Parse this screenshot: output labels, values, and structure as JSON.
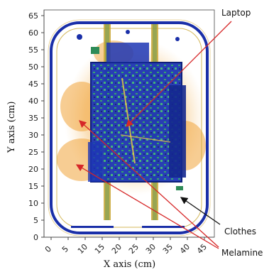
{
  "figure": {
    "x_axis_label": "X axis (cm)",
    "y_axis_label": "Y axis (cm)",
    "x_ticks": [
      "0",
      "5",
      "10",
      "15",
      "20",
      "25",
      "30",
      "35",
      "40",
      "45"
    ],
    "y_ticks": [
      "0",
      "5",
      "10",
      "15",
      "20",
      "25",
      "30",
      "35",
      "40",
      "45",
      "50",
      "55",
      "60",
      "65"
    ],
    "xlim": [
      0,
      48
    ],
    "ylim": [
      0,
      66
    ],
    "annotations": [
      {
        "label": "Laptop",
        "arrow_color": "#d62728"
      },
      {
        "label": "Clothes",
        "arrow_color": "#111111"
      },
      {
        "label": "Melamine",
        "arrow_color": "#d62728"
      }
    ],
    "colors": {
      "dense": "#1a2fa8",
      "mid": "#2e8b57",
      "light": "#e8a52e",
      "frame": "#1a2fa8"
    }
  }
}
